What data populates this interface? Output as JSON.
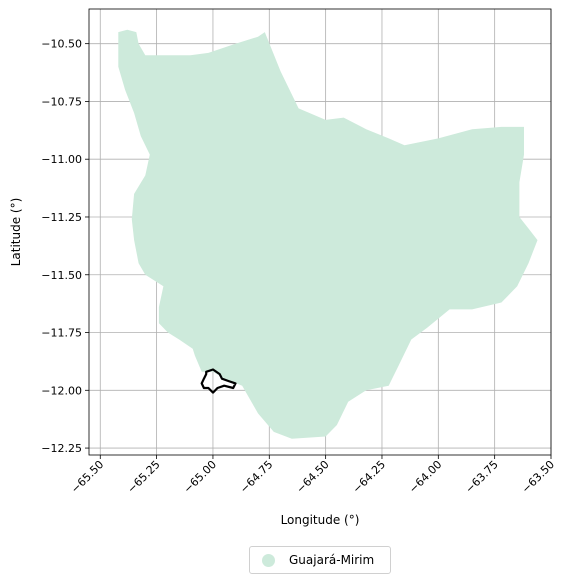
{
  "chart_data": {
    "type": "map",
    "xlabel": "Longitude (°)",
    "ylabel": "Latitude (°)",
    "xlim": [
      -65.55,
      -63.5
    ],
    "ylim": [
      -12.28,
      -10.35
    ],
    "xticks": [
      -65.5,
      -65.25,
      -65.0,
      -64.75,
      -64.5,
      -64.25,
      -64.0,
      -63.75,
      -63.5
    ],
    "xtick_labels": [
      "−65.50",
      "−65.25",
      "−65.00",
      "−64.75",
      "−64.50",
      "−64.25",
      "−64.00",
      "−63.75",
      "−63.50"
    ],
    "yticks": [
      -10.5,
      -10.75,
      -11.0,
      -11.25,
      -11.5,
      -11.75,
      -12.0,
      -12.25
    ],
    "ytick_labels": [
      "−10.50",
      "−10.75",
      "−11.00",
      "−11.25",
      "−11.50",
      "−11.75",
      "−12.00",
      "−12.25"
    ],
    "grid": true,
    "legend_position": "bottom-center",
    "fill_color": "#cdeadb",
    "outline_color": "#000000",
    "series": [
      {
        "name": "Guajará-Mirim",
        "kind": "region",
        "polygon": [
          [
            -65.38,
            -10.44
          ],
          [
            -65.34,
            -10.45
          ],
          [
            -65.33,
            -10.5
          ],
          [
            -65.3,
            -10.55
          ],
          [
            -65.2,
            -10.55
          ],
          [
            -65.1,
            -10.55
          ],
          [
            -65.02,
            -10.54
          ],
          [
            -64.9,
            -10.5
          ],
          [
            -64.8,
            -10.47
          ],
          [
            -64.77,
            -10.45
          ],
          [
            -64.7,
            -10.62
          ],
          [
            -64.62,
            -10.78
          ],
          [
            -64.5,
            -10.83
          ],
          [
            -64.42,
            -10.82
          ],
          [
            -64.32,
            -10.87
          ],
          [
            -64.22,
            -10.91
          ],
          [
            -64.15,
            -10.94
          ],
          [
            -64.0,
            -10.91
          ],
          [
            -63.85,
            -10.87
          ],
          [
            -63.72,
            -10.86
          ],
          [
            -63.62,
            -10.86
          ],
          [
            -63.62,
            -10.98
          ],
          [
            -63.64,
            -11.1
          ],
          [
            -63.64,
            -11.25
          ],
          [
            -63.6,
            -11.3
          ],
          [
            -63.56,
            -11.35
          ],
          [
            -63.6,
            -11.45
          ],
          [
            -63.65,
            -11.55
          ],
          [
            -63.72,
            -11.62
          ],
          [
            -63.85,
            -11.65
          ],
          [
            -63.95,
            -11.65
          ],
          [
            -64.05,
            -11.73
          ],
          [
            -64.12,
            -11.78
          ],
          [
            -64.18,
            -11.9
          ],
          [
            -64.22,
            -11.98
          ],
          [
            -64.32,
            -12.0
          ],
          [
            -64.4,
            -12.05
          ],
          [
            -64.45,
            -12.15
          ],
          [
            -64.5,
            -12.2
          ],
          [
            -64.65,
            -12.21
          ],
          [
            -64.73,
            -12.18
          ],
          [
            -64.8,
            -12.1
          ],
          [
            -64.87,
            -11.98
          ],
          [
            -64.95,
            -11.95
          ],
          [
            -65.0,
            -11.92
          ],
          [
            -65.05,
            -11.92
          ],
          [
            -65.08,
            -11.85
          ],
          [
            -65.09,
            -11.82
          ],
          [
            -65.15,
            -11.78
          ],
          [
            -65.2,
            -11.75
          ],
          [
            -65.24,
            -11.71
          ],
          [
            -65.24,
            -11.64
          ],
          [
            -65.22,
            -11.55
          ],
          [
            -65.3,
            -11.5
          ],
          [
            -65.33,
            -11.45
          ],
          [
            -65.35,
            -11.35
          ],
          [
            -65.36,
            -11.26
          ],
          [
            -65.35,
            -11.15
          ],
          [
            -65.3,
            -11.07
          ],
          [
            -65.28,
            -10.98
          ],
          [
            -65.32,
            -10.9
          ],
          [
            -65.35,
            -10.8
          ],
          [
            -65.39,
            -10.7
          ],
          [
            -65.42,
            -10.6
          ],
          [
            -65.42,
            -10.5
          ],
          [
            -65.42,
            -10.45
          ]
        ]
      },
      {
        "name": "",
        "kind": "outline",
        "polygon": [
          [
            -65.03,
            -11.92
          ],
          [
            -65.0,
            -11.91
          ],
          [
            -64.97,
            -11.93
          ],
          [
            -64.96,
            -11.95
          ],
          [
            -64.93,
            -11.96
          ],
          [
            -64.9,
            -11.97
          ],
          [
            -64.91,
            -11.99
          ],
          [
            -64.95,
            -11.98
          ],
          [
            -64.98,
            -11.99
          ],
          [
            -65.0,
            -12.01
          ],
          [
            -65.02,
            -11.99
          ],
          [
            -65.04,
            -11.99
          ],
          [
            -65.05,
            -11.97
          ],
          [
            -65.04,
            -11.95
          ],
          [
            -65.03,
            -11.93
          ]
        ]
      }
    ]
  }
}
